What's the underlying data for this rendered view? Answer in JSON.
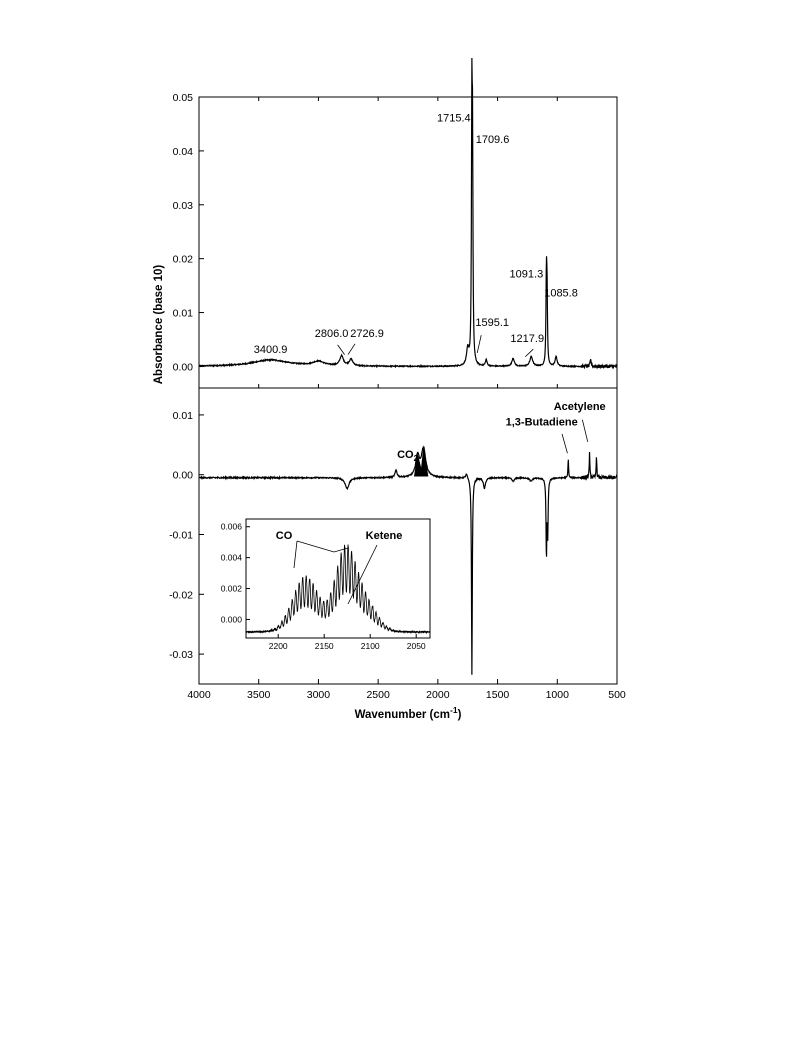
{
  "chart_data": {
    "type": "line",
    "xlabel_main": "Wavenumber (cm",
    "xlabel_sup": "-1",
    "xlabel_close": ")",
    "ylabel": "Absorbance (base 10)",
    "xlim": [
      4000,
      500
    ],
    "x_ticks": [
      4000,
      3500,
      3000,
      2500,
      2000,
      1500,
      1000,
      500
    ],
    "panels": [
      {
        "name": "top",
        "ylim": [
          -0.004,
          0.05
        ],
        "y_ticks": [
          0.0,
          0.01,
          0.02,
          0.03,
          0.04,
          0.05
        ],
        "y_tick_labels": [
          "0.00",
          "0.01",
          "0.02",
          "0.03",
          "0.04",
          "0.05"
        ],
        "baseline": 0.0,
        "peaks": [
          {
            "x": 3400.9,
            "y": 0.0012,
            "w": 180
          },
          {
            "x": 3000,
            "y": 0.0008,
            "w": 60
          },
          {
            "x": 2806.0,
            "y": 0.0018,
            "w": 18
          },
          {
            "x": 2726.9,
            "y": 0.0012,
            "w": 18
          },
          {
            "x": 1750,
            "y": 0.003,
            "w": 12
          },
          {
            "x": 1715.4,
            "y": 0.0445,
            "w": 4
          },
          {
            "x": 1709.6,
            "y": 0.036,
            "w": 4
          },
          {
            "x": 1595.1,
            "y": 0.0012,
            "w": 8
          },
          {
            "x": 1370,
            "y": 0.0015,
            "w": 12
          },
          {
            "x": 1217.9,
            "y": 0.0018,
            "w": 14
          },
          {
            "x": 1091.3,
            "y": 0.016,
            "w": 4
          },
          {
            "x": 1085.8,
            "y": 0.0125,
            "w": 4
          },
          {
            "x": 1010,
            "y": 0.0018,
            "w": 10
          },
          {
            "x": 720,
            "y": 0.0012,
            "w": 6
          }
        ],
        "annotations": [
          {
            "text": "3400.9",
            "x": 3400.9,
            "y": 0.0025
          },
          {
            "text": "2806.0",
            "x": 2806.0,
            "y": 0.0055
          },
          {
            "text": "2726.9",
            "x": 2726.9,
            "y": 0.0055
          },
          {
            "text": "1715.4",
            "x": 1715.4,
            "y": 0.0455
          },
          {
            "text": "1709.6",
            "x": 1709.6,
            "y": 0.0415
          },
          {
            "text": "1595.1",
            "x": 1595.1,
            "y": 0.0075
          },
          {
            "text": "1217.9",
            "x": 1217.9,
            "y": 0.0045
          },
          {
            "text": "1091.3",
            "x": 1091.3,
            "y": 0.0165
          },
          {
            "text": "1085.8",
            "x": 1085.8,
            "y": 0.013
          }
        ]
      },
      {
        "name": "bottom",
        "ylim": [
          -0.035,
          0.0145
        ],
        "y_ticks": [
          0.01,
          0.0,
          -0.01,
          -0.02,
          -0.03
        ],
        "y_tick_labels": [
          "0.01",
          "0.00",
          "-0.01",
          "-0.02",
          "-0.03"
        ],
        "baseline": -0.0005,
        "peaks": [
          {
            "x": 2760,
            "y": -0.0018,
            "w": 20
          },
          {
            "x": 2350,
            "y": 0.0012,
            "w": 10
          },
          {
            "x": 2170,
            "y": 0.0035,
            "w": 18
          },
          {
            "x": 2120,
            "y": 0.0048,
            "w": 22
          },
          {
            "x": 1760,
            "y": 0.0008,
            "w": 10
          },
          {
            "x": 1715,
            "y": -0.033,
            "w": 4
          },
          {
            "x": 1610,
            "y": -0.0018,
            "w": 10
          },
          {
            "x": 1370,
            "y": -0.0006,
            "w": 12
          },
          {
            "x": 1220,
            "y": -0.0006,
            "w": 12
          },
          {
            "x": 1091,
            "y": -0.0128,
            "w": 4
          },
          {
            "x": 1080,
            "y": -0.009,
            "w": 4
          },
          {
            "x": 908,
            "y": 0.0032,
            "w": 3
          },
          {
            "x": 730,
            "y": 0.0042,
            "w": 3
          },
          {
            "x": 672,
            "y": 0.0038,
            "w": 3
          }
        ],
        "annotations": [
          {
            "text": "CO",
            "sub": "2",
            "x": 2220,
            "y": 0.0028
          },
          {
            "text": "1,3-Butadiene",
            "x": 1030,
            "y": 0.0082
          },
          {
            "text": "Acetylene",
            "x": 645,
            "y": 0.0108
          }
        ]
      }
    ],
    "inset": {
      "xlim": [
        2235,
        2035
      ],
      "ylim": [
        -0.0012,
        0.0065
      ],
      "x_ticks": [
        2200,
        2150,
        2100,
        2050
      ],
      "y_ticks": [
        0.0,
        0.002,
        0.004,
        0.006
      ],
      "y_tick_labels": [
        "0.000",
        "0.002",
        "0.004",
        "0.006"
      ],
      "labels": [
        "CO",
        "Ketene"
      ]
    }
  }
}
